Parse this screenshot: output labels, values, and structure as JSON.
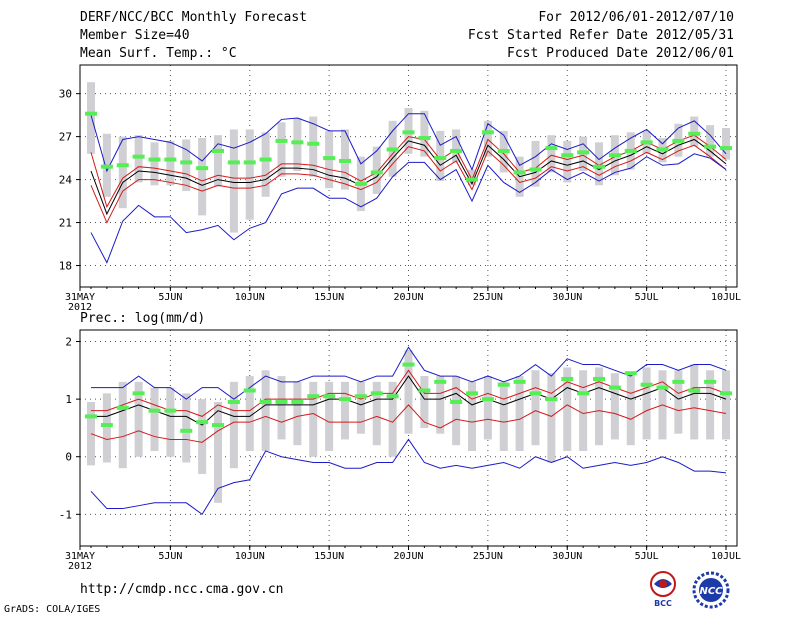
{
  "header": {
    "title": "DERF/NCC/BCC Monthly Forecast",
    "member_size": "Member Size=40",
    "variable": "Mean Surf. Temp.: °C",
    "period": "For 2012/06/01-2012/07/10",
    "fcst_started": "Fcst Started Refer Date 2012/05/31",
    "fcst_produced": "Fcst Produced Date 2012/06/01"
  },
  "footer": {
    "url": "http://cmdp.ncc.cma.gov.cn",
    "credit": "GrADS: COLA/IGES"
  },
  "logos": {
    "bcc": "BCC",
    "ncc": "NCC"
  },
  "colors": {
    "envelope": "#1b1bc8",
    "spread": "#d41a1a",
    "mean": "#000000",
    "box": "#cfcfd4",
    "observed": "#55ee55"
  },
  "chart_data": [
    {
      "type": "line",
      "title": "Mean Surf. Temp.: °C",
      "ylim": [
        16.5,
        32
      ],
      "yticks": [
        18,
        21,
        24,
        27,
        30
      ],
      "xticks": [
        "31MAY\n2012",
        "5JUN",
        "10JUN",
        "15JUN",
        "20JUN",
        "25JUN",
        "30JUN",
        "5JUL",
        "10JUL"
      ],
      "days": 41,
      "series": [
        {
          "name": "max",
          "values": [
            28.5,
            24.6,
            26.8,
            27.0,
            26.8,
            26.6,
            26.1,
            25.3,
            26.5,
            26.2,
            26.6,
            27.2,
            28.2,
            28.3,
            27.9,
            27.4,
            27.4,
            25.1,
            26.0,
            27.4,
            28.6,
            28.6,
            26.4,
            27.0,
            24.7,
            27.9,
            27.1,
            25.0,
            25.6,
            26.5,
            26.1,
            26.5,
            25.4,
            26.2,
            26.9,
            27.5,
            26.5,
            27.6,
            28.1,
            27.1,
            25.8
          ]
        },
        {
          "name": "upper",
          "values": [
            25.9,
            22.1,
            24.1,
            24.9,
            24.8,
            24.6,
            24.4,
            23.9,
            24.3,
            24.1,
            24.1,
            24.3,
            25.1,
            25.1,
            25.0,
            24.7,
            24.5,
            23.9,
            24.5,
            25.8,
            27.0,
            26.8,
            25.4,
            26.1,
            24.0,
            26.8,
            25.8,
            24.5,
            24.8,
            25.7,
            25.4,
            25.7,
            25.0,
            25.6,
            26.0,
            26.6,
            26.1,
            26.7,
            27.1,
            26.3,
            25.4
          ]
        },
        {
          "name": "mean",
          "values": [
            24.6,
            21.6,
            23.8,
            24.6,
            24.5,
            24.3,
            24.1,
            23.6,
            24.0,
            23.8,
            23.8,
            24.0,
            24.8,
            24.8,
            24.7,
            24.3,
            24.1,
            23.6,
            24.2,
            25.5,
            26.7,
            26.4,
            25.0,
            25.7,
            23.7,
            26.4,
            25.4,
            24.2,
            24.5,
            25.3,
            25.0,
            25.3,
            24.7,
            25.3,
            25.7,
            26.3,
            25.8,
            26.4,
            26.8,
            26.0,
            25.1
          ]
        },
        {
          "name": "lower",
          "values": [
            23.6,
            21.0,
            23.2,
            24.0,
            24.0,
            23.8,
            23.6,
            23.2,
            23.6,
            23.4,
            23.4,
            23.6,
            24.4,
            24.4,
            24.3,
            24.0,
            23.7,
            23.3,
            23.8,
            25.1,
            26.3,
            26.0,
            24.6,
            25.3,
            23.3,
            26.0,
            25.0,
            23.8,
            24.1,
            24.9,
            24.6,
            24.9,
            24.3,
            24.9,
            25.3,
            25.9,
            25.4,
            26.0,
            26.4,
            25.6,
            24.7
          ]
        },
        {
          "name": "min",
          "values": [
            20.3,
            18.2,
            21.1,
            22.2,
            21.4,
            21.4,
            20.3,
            20.5,
            20.8,
            19.8,
            20.6,
            21.0,
            23.0,
            23.4,
            23.4,
            22.7,
            22.7,
            22.1,
            22.7,
            24.2,
            25.2,
            25.2,
            24.0,
            24.7,
            22.5,
            25.0,
            23.8,
            23.1,
            23.8,
            24.7,
            24.0,
            24.5,
            23.9,
            24.5,
            24.8,
            25.6,
            25.0,
            25.1,
            25.8,
            25.5,
            24.7
          ]
        }
      ],
      "observed": [
        28.6,
        24.9,
        25.0,
        25.6,
        25.4,
        25.4,
        25.2,
        24.8,
        26.0,
        25.2,
        25.2,
        25.4,
        26.7,
        26.6,
        26.5,
        25.5,
        25.3,
        23.7,
        24.5,
        26.1,
        27.3,
        26.9,
        25.5,
        26.0,
        24.0,
        27.3,
        26.0,
        24.5,
        24.7,
        26.2,
        25.7,
        25.9,
        24.9,
        25.7,
        26.0,
        26.6,
        26.1,
        26.7,
        27.2,
        26.3,
        26.2
      ],
      "box_low": [
        25.8,
        22.8,
        22.0,
        23.8,
        23.6,
        23.6,
        23.2,
        21.5,
        23.5,
        20.3,
        21.2,
        22.8,
        24.2,
        24.6,
        24.2,
        23.4,
        23.3,
        21.8,
        23.0,
        24.2,
        25.8,
        25.6,
        23.9,
        25.2,
        23.6,
        25.6,
        24.5,
        22.8,
        23.5,
        24.5,
        23.8,
        24.6,
        23.6,
        24.3,
        24.7,
        25.8,
        25.2,
        25.6,
        26.3,
        25.6,
        25.4
      ],
      "box_high": [
        30.8,
        27.2,
        27.0,
        27.1,
        26.6,
        26.7,
        26.8,
        26.9,
        27.1,
        27.5,
        27.5,
        27.3,
        28.0,
        28.3,
        28.4,
        27.4,
        27.5,
        25.6,
        26.3,
        28.1,
        29.0,
        28.8,
        27.4,
        27.5,
        24.7,
        28.1,
        27.4,
        25.6,
        26.7,
        27.1,
        26.7,
        27.0,
        26.6,
        27.1,
        27.3,
        27.4,
        26.9,
        27.9,
        28.4,
        27.8,
        27.6
      ]
    },
    {
      "type": "line",
      "title": "Prec.: log(mm/d)",
      "ylim": [
        -1.55,
        2.2
      ],
      "yticks": [
        -1,
        0,
        1,
        2
      ],
      "xticks": [
        "31MAY\n2012",
        "5JUN",
        "10JUN",
        "15JUN",
        "20JUN",
        "25JUN",
        "30JUN",
        "5JUL",
        "10JUL"
      ],
      "days": 41,
      "series": [
        {
          "name": "max",
          "values": [
            1.2,
            1.2,
            1.2,
            1.4,
            1.2,
            1.2,
            1.0,
            1.2,
            1.2,
            1.0,
            1.2,
            1.4,
            1.3,
            1.3,
            1.4,
            1.4,
            1.4,
            1.3,
            1.4,
            1.4,
            1.9,
            1.5,
            1.4,
            1.4,
            1.3,
            1.4,
            1.3,
            1.4,
            1.6,
            1.4,
            1.7,
            1.6,
            1.6,
            1.5,
            1.4,
            1.6,
            1.6,
            1.5,
            1.6,
            1.6,
            1.5
          ]
        },
        {
          "name": "upper",
          "values": [
            0.8,
            0.8,
            0.9,
            1.0,
            0.9,
            0.8,
            0.8,
            0.7,
            0.9,
            0.8,
            0.8,
            1.0,
            1.0,
            1.0,
            1.0,
            1.1,
            1.1,
            1.0,
            1.1,
            1.1,
            1.5,
            1.1,
            1.1,
            1.2,
            1.0,
            1.1,
            1.0,
            1.1,
            1.2,
            1.1,
            1.3,
            1.2,
            1.3,
            1.2,
            1.1,
            1.2,
            1.3,
            1.1,
            1.2,
            1.2,
            1.1
          ]
        },
        {
          "name": "mean",
          "values": [
            0.7,
            0.7,
            0.8,
            0.9,
            0.8,
            0.7,
            0.7,
            0.55,
            0.8,
            0.7,
            0.7,
            0.9,
            0.9,
            0.9,
            0.9,
            1.0,
            1.0,
            0.9,
            1.0,
            1.0,
            1.4,
            1.0,
            1.0,
            1.1,
            0.9,
            1.0,
            0.9,
            1.0,
            1.1,
            1.0,
            1.2,
            1.1,
            1.2,
            1.1,
            1.0,
            1.1,
            1.2,
            1.0,
            1.1,
            1.1,
            1.0
          ]
        },
        {
          "name": "lower",
          "values": [
            0.4,
            0.3,
            0.35,
            0.45,
            0.35,
            0.3,
            0.3,
            0.25,
            0.45,
            0.6,
            0.6,
            0.7,
            0.6,
            0.7,
            0.75,
            0.6,
            0.6,
            0.6,
            0.7,
            0.6,
            0.9,
            0.6,
            0.5,
            0.65,
            0.6,
            0.65,
            0.6,
            0.65,
            0.8,
            0.7,
            0.9,
            0.75,
            0.8,
            0.75,
            0.65,
            0.8,
            0.9,
            0.8,
            0.85,
            0.8,
            0.75
          ]
        },
        {
          "name": "min",
          "values": [
            -0.6,
            -0.9,
            -0.9,
            -0.85,
            -0.8,
            -0.8,
            -0.8,
            -1.0,
            -0.55,
            -0.45,
            -0.4,
            0.1,
            0.0,
            -0.05,
            -0.1,
            -0.1,
            -0.2,
            -0.2,
            -0.1,
            -0.1,
            0.3,
            -0.1,
            -0.2,
            -0.15,
            -0.2,
            -0.15,
            -0.1,
            -0.2,
            0.0,
            -0.1,
            0.0,
            -0.2,
            -0.15,
            -0.1,
            -0.15,
            -0.1,
            0.0,
            -0.1,
            -0.25,
            -0.25,
            -0.28
          ]
        },
        {
          "name": "extra-low",
          "values": [
            null,
            null,
            null,
            null,
            null,
            null,
            null,
            null,
            null,
            null,
            null,
            null,
            null,
            null,
            null,
            null,
            null,
            null,
            null,
            null,
            null,
            null,
            null,
            null,
            null,
            null,
            null,
            null,
            null,
            null,
            null,
            null,
            null,
            null,
            null,
            null,
            null,
            null,
            null,
            null,
            null
          ]
        }
      ],
      "observed": [
        0.7,
        0.55,
        0.85,
        1.1,
        0.8,
        0.8,
        0.45,
        0.6,
        0.55,
        0.95,
        1.15,
        0.95,
        0.95,
        0.95,
        1.05,
        1.05,
        1.0,
        1.05,
        1.1,
        1.05,
        1.6,
        1.15,
        1.3,
        0.95,
        1.1,
        1.0,
        1.25,
        1.3,
        1.1,
        1.0,
        1.35,
        1.1,
        1.35,
        1.2,
        1.45,
        1.25,
        1.2,
        1.3,
        1.15,
        1.3,
        1.1
      ],
      "box_low": [
        -0.15,
        -0.1,
        -0.2,
        0.0,
        0.1,
        0.0,
        -0.1,
        -0.3,
        -0.8,
        -0.2,
        0.1,
        0.1,
        0.3,
        0.2,
        0.0,
        0.1,
        0.3,
        0.4,
        0.2,
        0.0,
        0.4,
        0.5,
        0.4,
        0.2,
        0.1,
        0.3,
        0.1,
        0.1,
        0.2,
        -0.1,
        0.1,
        0.1,
        0.2,
        0.3,
        0.2,
        0.3,
        0.3,
        0.4,
        0.3,
        0.3,
        0.3
      ],
      "box_high": [
        0.95,
        1.1,
        1.3,
        1.3,
        1.2,
        1.2,
        1.1,
        1.0,
        0.95,
        1.3,
        1.4,
        1.5,
        1.4,
        1.3,
        1.3,
        1.3,
        1.3,
        1.3,
        1.3,
        1.3,
        1.85,
        1.4,
        1.4,
        1.4,
        1.3,
        1.4,
        1.3,
        1.4,
        1.5,
        1.45,
        1.55,
        1.5,
        1.55,
        1.45,
        1.45,
        1.55,
        1.5,
        1.5,
        1.6,
        1.5,
        1.5
      ]
    }
  ]
}
